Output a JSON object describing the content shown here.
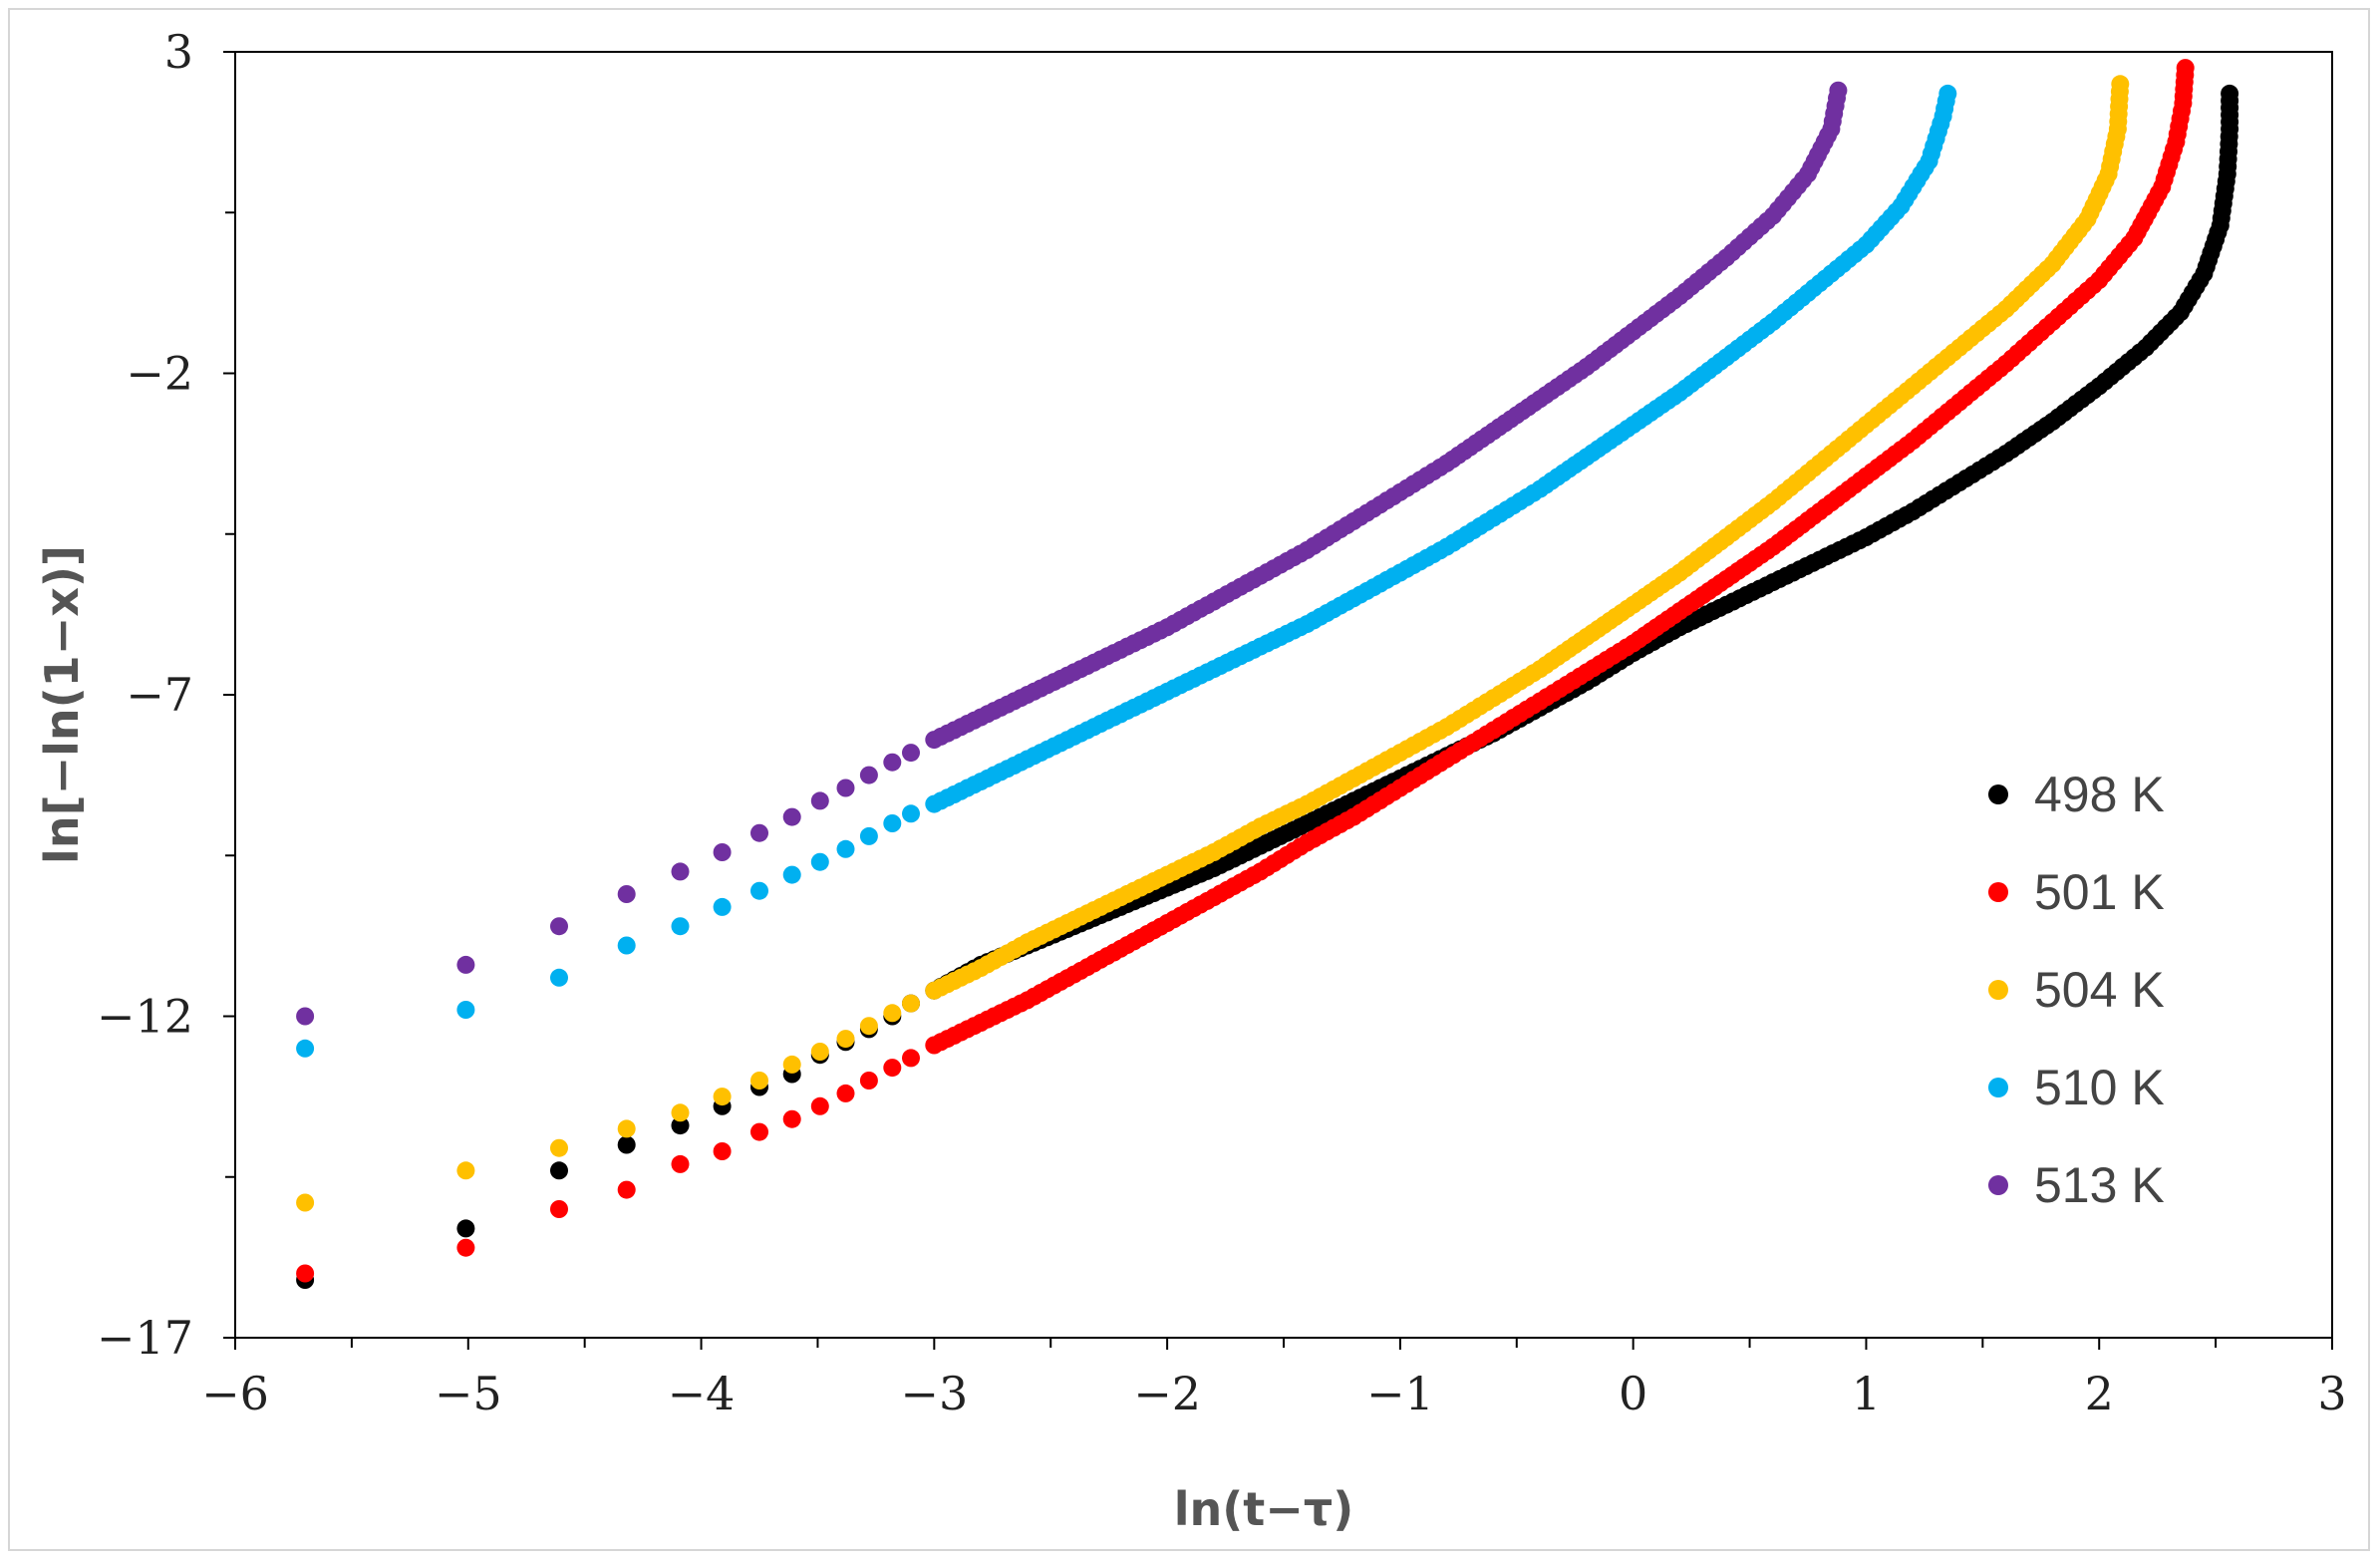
{
  "chart_data": {
    "type": "scatter",
    "title": "",
    "xlabel": "ln(t−τ)",
    "ylabel": "ln[−ln(1−x)]",
    "xlim": [
      -6,
      3
    ],
    "ylim": [
      -17,
      3
    ],
    "x_ticks": [
      -6,
      -5,
      -4,
      -3,
      -2,
      -1,
      0,
      1,
      2,
      3
    ],
    "x_tick_labels": [
      "−6",
      "−5",
      "−4",
      "−3",
      "−2",
      "−1",
      "0",
      "1",
      "2",
      "3"
    ],
    "y_ticks": [
      3,
      -2,
      -7,
      -12,
      -17
    ],
    "y_tick_labels": [
      "3",
      "−2",
      "−7",
      "−12",
      "−17"
    ],
    "legend_position": "right",
    "series": [
      {
        "name": "498 K",
        "color": "#000000",
        "points": [
          [
            -5.7,
            -16.1
          ],
          [
            -5.01,
            -15.3
          ],
          [
            -4.61,
            -14.4
          ],
          [
            -4.32,
            -14.0
          ],
          [
            -4.09,
            -13.7
          ],
          [
            -3.91,
            -13.4
          ],
          [
            -3.75,
            -13.1
          ],
          [
            -3.61,
            -12.9
          ],
          [
            -3.49,
            -12.6
          ],
          [
            -3.38,
            -12.4
          ],
          [
            -3.28,
            -12.2
          ],
          [
            -3.18,
            -12.0
          ],
          [
            -3.1,
            -11.8
          ],
          [
            -3.0,
            -11.6
          ],
          [
            -2.8,
            -11.2
          ],
          [
            -2.6,
            -10.9
          ],
          [
            -2.4,
            -10.6
          ],
          [
            -2.2,
            -10.3
          ],
          [
            -2.0,
            -10.0
          ],
          [
            -1.8,
            -9.7
          ],
          [
            -1.6,
            -9.35
          ],
          [
            -1.4,
            -9.0
          ],
          [
            -1.2,
            -8.65
          ],
          [
            -1.0,
            -8.3
          ],
          [
            -0.8,
            -7.95
          ],
          [
            -0.6,
            -7.6
          ],
          [
            -0.4,
            -7.2
          ],
          [
            -0.2,
            -6.8
          ],
          [
            0.0,
            -6.35
          ],
          [
            0.2,
            -5.95
          ],
          [
            0.4,
            -5.6
          ],
          [
            0.6,
            -5.25
          ],
          [
            0.8,
            -4.9
          ],
          [
            1.0,
            -4.55
          ],
          [
            1.2,
            -4.15
          ],
          [
            1.4,
            -3.7
          ],
          [
            1.6,
            -3.25
          ],
          [
            1.8,
            -2.75
          ],
          [
            2.0,
            -2.2
          ],
          [
            2.2,
            -1.6
          ],
          [
            2.35,
            -1.05
          ],
          [
            2.45,
            -0.45
          ],
          [
            2.52,
            0.3
          ],
          [
            2.55,
            1.1
          ],
          [
            2.56,
            1.8
          ],
          [
            2.56,
            2.35
          ]
        ]
      },
      {
        "name": "501 K",
        "color": "#ff0000",
        "points": [
          [
            -5.7,
            -16.0
          ],
          [
            -5.01,
            -15.6
          ],
          [
            -4.61,
            -15.0
          ],
          [
            -4.32,
            -14.7
          ],
          [
            -4.09,
            -14.3
          ],
          [
            -3.91,
            -14.1
          ],
          [
            -3.75,
            -13.8
          ],
          [
            -3.61,
            -13.6
          ],
          [
            -3.49,
            -13.4
          ],
          [
            -3.38,
            -13.2
          ],
          [
            -3.28,
            -13.0
          ],
          [
            -3.18,
            -12.8
          ],
          [
            -3.1,
            -12.65
          ],
          [
            -3.0,
            -12.45
          ],
          [
            -2.8,
            -12.1
          ],
          [
            -2.6,
            -11.75
          ],
          [
            -2.4,
            -11.35
          ],
          [
            -2.2,
            -10.95
          ],
          [
            -2.0,
            -10.55
          ],
          [
            -1.8,
            -10.15
          ],
          [
            -1.6,
            -9.75
          ],
          [
            -1.4,
            -9.3
          ],
          [
            -1.2,
            -8.9
          ],
          [
            -1.0,
            -8.45
          ],
          [
            -0.8,
            -8.0
          ],
          [
            -0.6,
            -7.55
          ],
          [
            -0.4,
            -7.1
          ],
          [
            -0.2,
            -6.65
          ],
          [
            0.0,
            -6.2
          ],
          [
            0.2,
            -5.7
          ],
          [
            0.4,
            -5.2
          ],
          [
            0.6,
            -4.7
          ],
          [
            0.8,
            -4.15
          ],
          [
            1.0,
            -3.6
          ],
          [
            1.2,
            -3.05
          ],
          [
            1.4,
            -2.45
          ],
          [
            1.6,
            -1.85
          ],
          [
            1.8,
            -1.2
          ],
          [
            2.0,
            -0.55
          ],
          [
            2.15,
            0.1
          ],
          [
            2.27,
            0.9
          ],
          [
            2.33,
            1.6
          ],
          [
            2.36,
            2.2
          ],
          [
            2.37,
            2.75
          ]
        ]
      },
      {
        "name": "504 K",
        "color": "#ffc000",
        "points": [
          [
            -5.7,
            -14.9
          ],
          [
            -5.01,
            -14.4
          ],
          [
            -4.61,
            -14.05
          ],
          [
            -4.32,
            -13.75
          ],
          [
            -4.09,
            -13.5
          ],
          [
            -3.91,
            -13.25
          ],
          [
            -3.75,
            -13.0
          ],
          [
            -3.61,
            -12.75
          ],
          [
            -3.49,
            -12.55
          ],
          [
            -3.38,
            -12.35
          ],
          [
            -3.28,
            -12.15
          ],
          [
            -3.18,
            -11.95
          ],
          [
            -3.1,
            -11.8
          ],
          [
            -3.0,
            -11.6
          ],
          [
            -2.8,
            -11.25
          ],
          [
            -2.6,
            -10.85
          ],
          [
            -2.4,
            -10.5
          ],
          [
            -2.2,
            -10.15
          ],
          [
            -2.0,
            -9.8
          ],
          [
            -1.8,
            -9.45
          ],
          [
            -1.6,
            -9.05
          ],
          [
            -1.4,
            -8.7
          ],
          [
            -1.2,
            -8.3
          ],
          [
            -1.0,
            -7.9
          ],
          [
            -0.8,
            -7.5
          ],
          [
            -0.6,
            -7.05
          ],
          [
            -0.4,
            -6.6
          ],
          [
            -0.2,
            -6.1
          ],
          [
            0.0,
            -5.6
          ],
          [
            0.2,
            -5.1
          ],
          [
            0.4,
            -4.55
          ],
          [
            0.6,
            -4.0
          ],
          [
            0.8,
            -3.4
          ],
          [
            1.0,
            -2.8
          ],
          [
            1.2,
            -2.2
          ],
          [
            1.4,
            -1.6
          ],
          [
            1.6,
            -1.0
          ],
          [
            1.8,
            -0.3
          ],
          [
            1.95,
            0.4
          ],
          [
            2.04,
            1.1
          ],
          [
            2.08,
            1.8
          ],
          [
            2.09,
            2.5
          ]
        ]
      },
      {
        "name": "510 K",
        "color": "#00b0f0",
        "points": [
          [
            -5.7,
            -12.5
          ],
          [
            -5.01,
            -11.9
          ],
          [
            -4.61,
            -11.4
          ],
          [
            -4.32,
            -10.9
          ],
          [
            -4.09,
            -10.6
          ],
          [
            -3.91,
            -10.3
          ],
          [
            -3.75,
            -10.05
          ],
          [
            -3.61,
            -9.8
          ],
          [
            -3.49,
            -9.6
          ],
          [
            -3.38,
            -9.4
          ],
          [
            -3.28,
            -9.2
          ],
          [
            -3.18,
            -9.0
          ],
          [
            -3.1,
            -8.85
          ],
          [
            -3.0,
            -8.7
          ],
          [
            -2.8,
            -8.35
          ],
          [
            -2.6,
            -8.0
          ],
          [
            -2.4,
            -7.65
          ],
          [
            -2.2,
            -7.3
          ],
          [
            -2.0,
            -6.95
          ],
          [
            -1.8,
            -6.6
          ],
          [
            -1.6,
            -6.25
          ],
          [
            -1.4,
            -5.9
          ],
          [
            -1.2,
            -5.5
          ],
          [
            -1.0,
            -5.1
          ],
          [
            -0.8,
            -4.7
          ],
          [
            -0.6,
            -4.25
          ],
          [
            -0.4,
            -3.8
          ],
          [
            -0.2,
            -3.3
          ],
          [
            0.0,
            -2.8
          ],
          [
            0.2,
            -2.3
          ],
          [
            0.4,
            -1.75
          ],
          [
            0.6,
            -1.2
          ],
          [
            0.8,
            -0.6
          ],
          [
            1.0,
            0.0
          ],
          [
            1.15,
            0.6
          ],
          [
            1.27,
            1.3
          ],
          [
            1.33,
            2.0
          ],
          [
            1.35,
            2.35
          ]
        ]
      },
      {
        "name": "513 K",
        "color": "#7030a0",
        "points": [
          [
            -5.7,
            -12.0
          ],
          [
            -5.01,
            -11.2
          ],
          [
            -4.61,
            -10.6
          ],
          [
            -4.32,
            -10.1
          ],
          [
            -4.09,
            -9.75
          ],
          [
            -3.91,
            -9.45
          ],
          [
            -3.75,
            -9.15
          ],
          [
            -3.61,
            -8.9
          ],
          [
            -3.49,
            -8.65
          ],
          [
            -3.38,
            -8.45
          ],
          [
            -3.28,
            -8.25
          ],
          [
            -3.18,
            -8.05
          ],
          [
            -3.1,
            -7.9
          ],
          [
            -3.0,
            -7.7
          ],
          [
            -2.8,
            -7.35
          ],
          [
            -2.6,
            -7.0
          ],
          [
            -2.4,
            -6.65
          ],
          [
            -2.2,
            -6.3
          ],
          [
            -2.0,
            -5.95
          ],
          [
            -1.8,
            -5.55
          ],
          [
            -1.6,
            -5.15
          ],
          [
            -1.4,
            -4.75
          ],
          [
            -1.2,
            -4.3
          ],
          [
            -1.0,
            -3.85
          ],
          [
            -0.8,
            -3.4
          ],
          [
            -0.6,
            -2.9
          ],
          [
            -0.4,
            -2.4
          ],
          [
            -0.2,
            -1.9
          ],
          [
            0.0,
            -1.35
          ],
          [
            0.2,
            -0.8
          ],
          [
            0.4,
            -0.2
          ],
          [
            0.6,
            0.45
          ],
          [
            0.75,
            1.1
          ],
          [
            0.85,
            1.8
          ],
          [
            0.88,
            2.4
          ]
        ]
      }
    ]
  }
}
